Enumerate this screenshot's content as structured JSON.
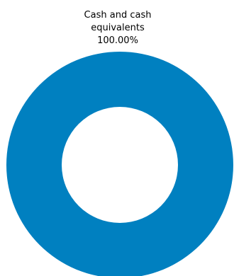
{
  "chart_data": {
    "type": "pie",
    "variant": "donut",
    "slices": [
      {
        "label_lines": [
          "Cash and cash",
          "equivalents"
        ],
        "label": "Cash and cash equivalents",
        "value": 100.0,
        "value_label": "100.00%",
        "color": "#0080C0"
      }
    ],
    "legend": "none"
  }
}
